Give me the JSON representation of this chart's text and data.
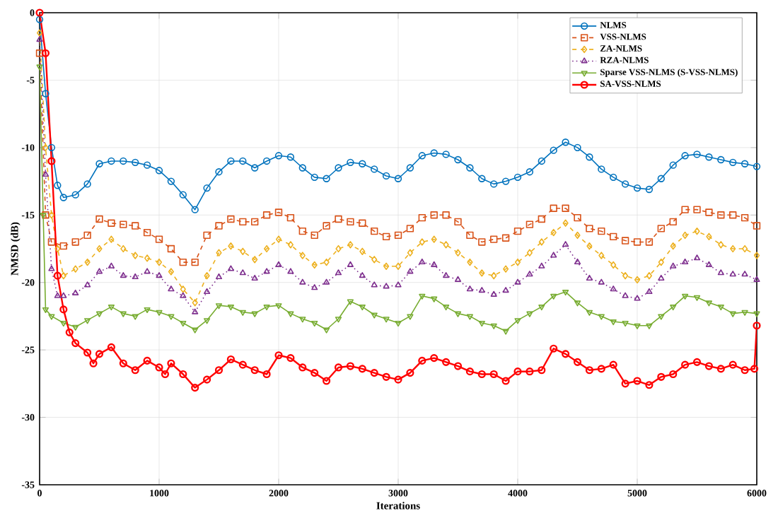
{
  "chart_data": {
    "type": "line",
    "xlabel": "Iterations",
    "ylabel": "NMSD (dB)",
    "xlim": [
      0,
      6000
    ],
    "ylim": [
      -35,
      0
    ],
    "xticks": [
      0,
      1000,
      2000,
      3000,
      4000,
      5000,
      6000
    ],
    "yticks": [
      -35,
      -30,
      -25,
      -20,
      -15,
      -10,
      -5,
      0
    ],
    "grid": true,
    "legend": "top right",
    "series": [
      {
        "name": "NLMS",
        "color": "#0072bd",
        "marker": "circle",
        "line_style": "solid",
        "x": [
          0,
          50,
          100,
          150,
          200,
          300,
          400,
          500,
          600,
          700,
          800,
          900,
          1000,
          1100,
          1200,
          1300,
          1400,
          1500,
          1600,
          1700,
          1800,
          1900,
          2000,
          2100,
          2200,
          2300,
          2400,
          2500,
          2600,
          2700,
          2800,
          2900,
          3000,
          3100,
          3200,
          3300,
          3400,
          3500,
          3600,
          3700,
          3800,
          3900,
          4000,
          4100,
          4200,
          4300,
          4400,
          4500,
          4600,
          4700,
          4800,
          4900,
          5000,
          5100,
          5200,
          5300,
          5400,
          5500,
          5600,
          5700,
          5800,
          5900,
          6000
        ],
        "values": [
          -0.5,
          -6,
          -10,
          -12.8,
          -13.7,
          -13.5,
          -12.7,
          -11.2,
          -11,
          -11,
          -11.1,
          -11.3,
          -11.7,
          -12.5,
          -13.5,
          -14.6,
          -13,
          -11.8,
          -11,
          -11,
          -11.5,
          -11,
          -10.6,
          -10.7,
          -11.5,
          -12.2,
          -12.3,
          -11.5,
          -11.1,
          -11.2,
          -11.6,
          -12.1,
          -12.3,
          -11.5,
          -10.6,
          -10.4,
          -10.5,
          -10.9,
          -11.5,
          -12.3,
          -12.7,
          -12.5,
          -12.2,
          -11.8,
          -11,
          -10.2,
          -9.6,
          -10,
          -10.7,
          -11.6,
          -12.2,
          -12.7,
          -13,
          -13.1,
          -12.3,
          -11.3,
          -10.6,
          -10.5,
          -10.7,
          -10.9,
          -11.1,
          -11.2,
          -11.4
        ]
      },
      {
        "name": "VSS-NLMS",
        "color": "#d95319",
        "marker": "square",
        "line_style": "dashed",
        "x": [
          0,
          50,
          100,
          200,
          300,
          400,
          500,
          600,
          700,
          800,
          900,
          1000,
          1100,
          1200,
          1300,
          1400,
          1500,
          1600,
          1700,
          1800,
          1900,
          2000,
          2100,
          2200,
          2300,
          2400,
          2500,
          2600,
          2700,
          2800,
          2900,
          3000,
          3100,
          3200,
          3300,
          3400,
          3500,
          3600,
          3700,
          3800,
          3900,
          4000,
          4100,
          4200,
          4300,
          4400,
          4500,
          4600,
          4700,
          4800,
          4900,
          5000,
          5100,
          5200,
          5300,
          5400,
          5500,
          5600,
          5700,
          5800,
          5900,
          6000
        ],
        "values": [
          -3,
          -15,
          -17,
          -17.3,
          -17,
          -16.5,
          -15.3,
          -15.6,
          -15.7,
          -15.8,
          -16.3,
          -16.8,
          -17.5,
          -18.5,
          -18.5,
          -16.5,
          -15.8,
          -15.3,
          -15.5,
          -15.5,
          -15,
          -14.8,
          -15.2,
          -16.2,
          -16.5,
          -15.8,
          -15.3,
          -15.5,
          -15.6,
          -16.2,
          -16.6,
          -16.5,
          -16,
          -15.2,
          -15,
          -15,
          -15.5,
          -16.5,
          -17,
          -16.8,
          -16.7,
          -16.2,
          -15.7,
          -15.3,
          -14.5,
          -14.5,
          -15.2,
          -16,
          -16.2,
          -16.6,
          -16.9,
          -17,
          -17,
          -16,
          -15.5,
          -14.6,
          -14.6,
          -14.8,
          -15,
          -15,
          -15.2,
          -15.8
        ]
      },
      {
        "name": "ZA-NLMS",
        "color": "#edb120",
        "marker": "diamond",
        "line_style": "dashed",
        "x": [
          0,
          50,
          100,
          150,
          200,
          300,
          400,
          500,
          600,
          700,
          800,
          900,
          1000,
          1100,
          1200,
          1300,
          1400,
          1500,
          1600,
          1700,
          1800,
          1900,
          2000,
          2100,
          2200,
          2300,
          2400,
          2500,
          2600,
          2700,
          2800,
          2900,
          3000,
          3100,
          3200,
          3300,
          3400,
          3500,
          3600,
          3700,
          3800,
          3900,
          4000,
          4100,
          4200,
          4300,
          4400,
          4500,
          4600,
          4700,
          4800,
          4900,
          5000,
          5100,
          5200,
          5300,
          5400,
          5500,
          5600,
          5700,
          5800,
          5900,
          6000
        ],
        "values": [
          -1.5,
          -10,
          -15,
          -17.5,
          -19.5,
          -19,
          -18.5,
          -17.5,
          -16.8,
          -17.5,
          -18,
          -18.2,
          -18.5,
          -19.2,
          -20.5,
          -21.5,
          -19.5,
          -17.8,
          -17.3,
          -17.7,
          -18.3,
          -17.5,
          -16.8,
          -17.2,
          -18,
          -18.7,
          -18.5,
          -17.5,
          -17.2,
          -17.7,
          -18.3,
          -18.8,
          -18.8,
          -17.8,
          -17,
          -16.8,
          -17.2,
          -17.8,
          -18.5,
          -19.3,
          -19.5,
          -19,
          -18.5,
          -17.8,
          -17,
          -16.3,
          -15.6,
          -16.5,
          -17.3,
          -18,
          -18.7,
          -19.5,
          -19.8,
          -19.5,
          -18.5,
          -17.3,
          -16.5,
          -16.2,
          -16.6,
          -17.2,
          -17.5,
          -17.5,
          -18
        ]
      },
      {
        "name": "RZA-NLMS",
        "color": "#7e2f8e",
        "marker": "triangle",
        "line_style": "dotted",
        "x": [
          0,
          50,
          100,
          150,
          200,
          300,
          400,
          500,
          600,
          700,
          800,
          900,
          1000,
          1100,
          1200,
          1300,
          1400,
          1500,
          1600,
          1700,
          1800,
          1900,
          2000,
          2100,
          2200,
          2300,
          2400,
          2500,
          2600,
          2700,
          2800,
          2900,
          3000,
          3100,
          3200,
          3300,
          3400,
          3500,
          3600,
          3700,
          3800,
          3900,
          4000,
          4100,
          4200,
          4300,
          4400,
          4500,
          4600,
          4700,
          4800,
          4900,
          5000,
          5100,
          5200,
          5300,
          5400,
          5500,
          5600,
          5700,
          5800,
          5900,
          6000
        ],
        "values": [
          -2,
          -12,
          -19,
          -21,
          -21,
          -20.8,
          -20.2,
          -19.2,
          -18.8,
          -19.5,
          -19.6,
          -19.2,
          -19.5,
          -20.5,
          -21,
          -22.2,
          -20.7,
          -19.6,
          -19,
          -19.3,
          -19.7,
          -19.2,
          -18.7,
          -19.2,
          -20,
          -20.4,
          -20,
          -19.3,
          -18.7,
          -19.5,
          -20.2,
          -20.3,
          -20.2,
          -19.2,
          -18.5,
          -18.7,
          -19.5,
          -19.8,
          -20.5,
          -20.6,
          -20.9,
          -20.6,
          -20,
          -19.4,
          -18.8,
          -18,
          -17.2,
          -18.5,
          -19.7,
          -20,
          -20.5,
          -21,
          -21.2,
          -20.7,
          -19.7,
          -18.8,
          -18.5,
          -18.2,
          -18.7,
          -19.3,
          -19.4,
          -19.4,
          -19.8
        ]
      },
      {
        "name": "Sparse VSS-NLMS (S-VSS-NLMS)",
        "color": "#77ac30",
        "marker": "triangle_down",
        "line_style": "solid",
        "x": [
          0,
          30,
          50,
          100,
          200,
          300,
          400,
          500,
          600,
          700,
          800,
          900,
          1000,
          1100,
          1200,
          1300,
          1400,
          1500,
          1600,
          1700,
          1800,
          1900,
          2000,
          2100,
          2200,
          2300,
          2400,
          2500,
          2600,
          2700,
          2800,
          2900,
          3000,
          3100,
          3200,
          3300,
          3400,
          3500,
          3600,
          3700,
          3800,
          3900,
          4000,
          4100,
          4200,
          4300,
          4400,
          4500,
          4600,
          4700,
          4800,
          4900,
          5000,
          5100,
          5200,
          5300,
          5400,
          5500,
          5600,
          5700,
          5800,
          5900,
          6000
        ],
        "values": [
          -4,
          -15,
          -22,
          -22.5,
          -23,
          -23.3,
          -22.8,
          -22.3,
          -21.8,
          -22.3,
          -22.5,
          -22,
          -22.2,
          -22.5,
          -23,
          -23.5,
          -22.8,
          -21.7,
          -21.8,
          -22.2,
          -22.3,
          -21.8,
          -21.7,
          -22.3,
          -22.7,
          -23,
          -23.5,
          -22.7,
          -21.4,
          -21.8,
          -22.4,
          -22.7,
          -23,
          -22.5,
          -21,
          -21.2,
          -21.8,
          -22.3,
          -22.5,
          -23,
          -23.2,
          -23.6,
          -22.8,
          -22.3,
          -21.8,
          -21,
          -20.7,
          -21.5,
          -22.2,
          -22.5,
          -22.9,
          -23,
          -23.2,
          -23.2,
          -22.5,
          -21.8,
          -21,
          -21.1,
          -21.5,
          -21.8,
          -22.3,
          -22.2,
          -22.3
        ]
      },
      {
        "name": "SA-VSS-NLMS",
        "color": "#ff0000",
        "marker": "circle",
        "line_style": "solid",
        "x": [
          0,
          50,
          100,
          150,
          200,
          250,
          300,
          400,
          450,
          500,
          600,
          700,
          800,
          900,
          1000,
          1050,
          1100,
          1200,
          1300,
          1400,
          1500,
          1600,
          1700,
          1800,
          1900,
          2000,
          2100,
          2200,
          2300,
          2400,
          2500,
          2600,
          2700,
          2800,
          2900,
          3000,
          3100,
          3200,
          3300,
          3400,
          3500,
          3600,
          3700,
          3800,
          3900,
          4000,
          4100,
          4200,
          4300,
          4400,
          4500,
          4600,
          4700,
          4800,
          4900,
          5000,
          5100,
          5200,
          5300,
          5400,
          5500,
          5600,
          5700,
          5800,
          5900,
          5980,
          6000
        ],
        "values": [
          0,
          -3,
          -11,
          -19.5,
          -22,
          -23.7,
          -24.5,
          -25.2,
          -26,
          -25.3,
          -24.8,
          -26,
          -26.5,
          -25.8,
          -26.3,
          -26.8,
          -26,
          -26.8,
          -27.8,
          -27.2,
          -26.5,
          -25.7,
          -26.1,
          -26.5,
          -26.8,
          -25.4,
          -25.6,
          -26.3,
          -26.7,
          -27.3,
          -26.3,
          -26.2,
          -26.4,
          -26.7,
          -27,
          -27.2,
          -26.7,
          -25.8,
          -25.6,
          -25.9,
          -26.2,
          -26.6,
          -26.8,
          -26.8,
          -27.3,
          -26.6,
          -26.6,
          -26.5,
          -24.9,
          -25.3,
          -25.9,
          -26.5,
          -26.4,
          -26.1,
          -27.5,
          -27.3,
          -27.6,
          -27,
          -26.8,
          -26.1,
          -25.9,
          -26.2,
          -26.4,
          -26.1,
          -26.5,
          -26.4,
          -23.2
        ]
      }
    ]
  }
}
